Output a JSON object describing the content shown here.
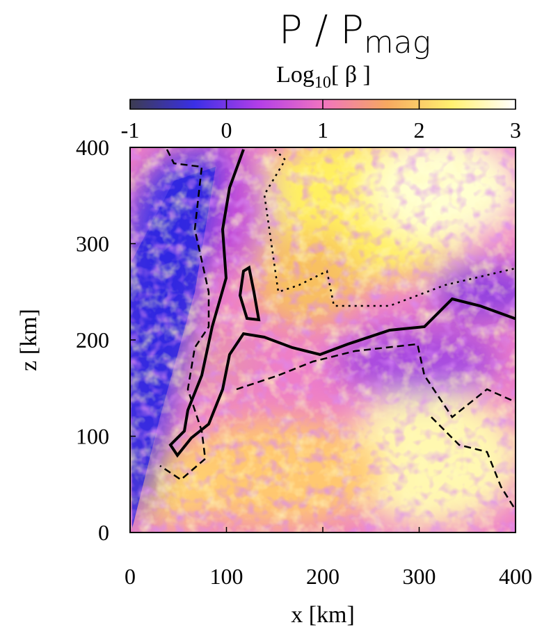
{
  "chart_data": {
    "type": "heatmap",
    "title": "P / P",
    "title_subscript": "mag",
    "colorbar_label": "Log",
    "colorbar_label_subscript": "10",
    "colorbar_label_suffix": "[ β ]",
    "colorbar_lim": [
      -1,
      3
    ],
    "colorbar_ticks": [
      -1,
      0,
      1,
      2,
      3
    ],
    "colormap": [
      "#3c3c50",
      "#3a2fe6",
      "#b23ee8",
      "#f074c0",
      "#f7a860",
      "#fff070",
      "#ffffff"
    ],
    "xlabel": "x [km]",
    "ylabel": "z [km]",
    "xlim": [
      0,
      400
    ],
    "ylim": [
      0,
      400
    ],
    "xticks": [
      0,
      100,
      200,
      300,
      400
    ],
    "yticks": [
      0,
      100,
      200,
      300,
      400
    ]
  }
}
